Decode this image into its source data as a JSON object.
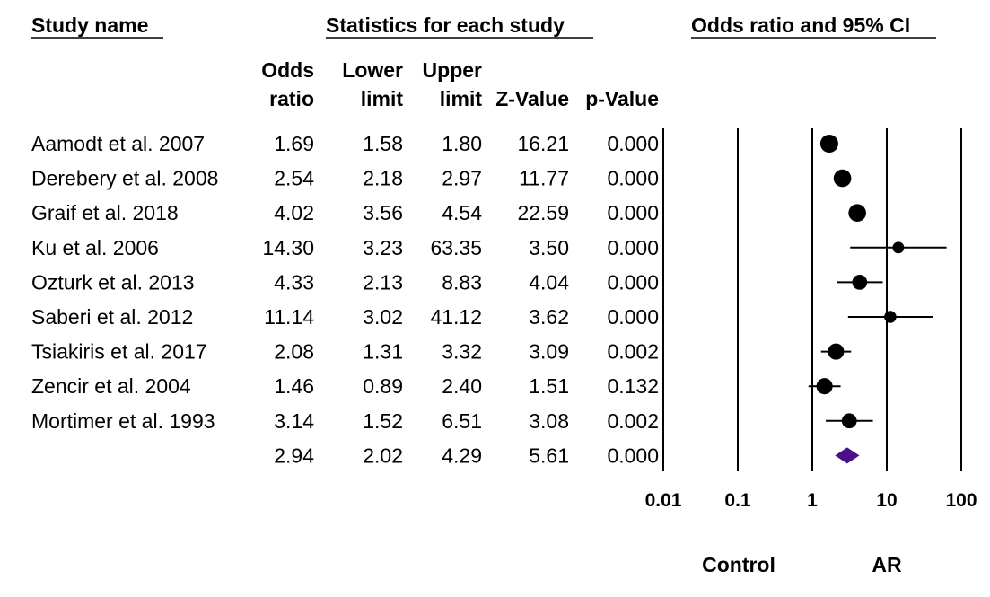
{
  "chart_data": {
    "type": "forest",
    "headers": {
      "study": "Study name",
      "statistics": "Statistics for each study",
      "plot": "Odds ratio and 95% CI"
    },
    "columns": [
      {
        "key": "or",
        "label": [
          "Odds",
          "ratio"
        ]
      },
      {
        "key": "lower",
        "label": [
          "Lower",
          "limit"
        ]
      },
      {
        "key": "upper",
        "label": [
          "Upper",
          "limit"
        ]
      },
      {
        "key": "z",
        "label": [
          "",
          "Z-Value"
        ]
      },
      {
        "key": "p",
        "label": [
          "",
          "p-Value"
        ]
      }
    ],
    "rows": [
      {
        "name": "Aamodt et al. 2007",
        "or": "1.69",
        "lower": "1.58",
        "upper": "1.80",
        "z": "16.21",
        "p": "0.000",
        "or_v": 1.69,
        "lower_v": 1.58,
        "upper_v": 1.8,
        "weight": 1.0
      },
      {
        "name": "Derebery et al. 2008",
        "or": "2.54",
        "lower": "2.18",
        "upper": "2.97",
        "z": "11.77",
        "p": "0.000",
        "or_v": 2.54,
        "lower_v": 2.18,
        "upper_v": 2.97,
        "weight": 0.97
      },
      {
        "name": "Graif et al. 2018",
        "or": "4.02",
        "lower": "3.56",
        "upper": "4.54",
        "z": "22.59",
        "p": "0.000",
        "or_v": 4.02,
        "lower_v": 3.56,
        "upper_v": 4.54,
        "weight": 0.97
      },
      {
        "name": "Ku et al. 2006",
        "or": "14.30",
        "lower": "3.23",
        "upper": "63.35",
        "z": "3.50",
        "p": "0.000",
        "or_v": 14.3,
        "lower_v": 3.23,
        "upper_v": 63.35,
        "weight": 0.45
      },
      {
        "name": "Ozturk et al. 2013",
        "or": "4.33",
        "lower": "2.13",
        "upper": "8.83",
        "z": "4.04",
        "p": "0.000",
        "or_v": 4.33,
        "lower_v": 2.13,
        "upper_v": 8.83,
        "weight": 0.75
      },
      {
        "name": "Saberi et al. 2012",
        "or": "11.14",
        "lower": "3.02",
        "upper": "41.12",
        "z": "3.62",
        "p": "0.000",
        "or_v": 11.14,
        "lower_v": 3.02,
        "upper_v": 41.12,
        "weight": 0.5
      },
      {
        "name": "Tsiakiris et al. 2017",
        "or": "2.08",
        "lower": "1.31",
        "upper": "3.32",
        "z": "3.09",
        "p": "0.002",
        "or_v": 2.08,
        "lower_v": 1.31,
        "upper_v": 3.32,
        "weight": 0.85
      },
      {
        "name": "Zencir et al. 2004",
        "or": "1.46",
        "lower": "0.89",
        "upper": "2.40",
        "z": "1.51",
        "p": "0.132",
        "or_v": 1.46,
        "lower_v": 0.89,
        "upper_v": 2.4,
        "weight": 0.85
      },
      {
        "name": "Mortimer et al. 1993",
        "or": "3.14",
        "lower": "1.52",
        "upper": "6.51",
        "z": "3.08",
        "p": "0.002",
        "or_v": 3.14,
        "lower_v": 1.52,
        "upper_v": 6.51,
        "weight": 0.75
      }
    ],
    "summary": {
      "name": "",
      "or": "2.94",
      "lower": "2.02",
      "upper": "4.29",
      "z": "5.61",
      "p": "0.000",
      "or_v": 2.94,
      "lower_v": 2.02,
      "upper_v": 4.29
    },
    "x_scale": "log",
    "xlim": [
      0.01,
      100
    ],
    "x_ticks": [
      {
        "value": 0.01,
        "label": "0.01"
      },
      {
        "value": 0.1,
        "label": "0.1"
      },
      {
        "value": 1,
        "label": "1"
      },
      {
        "value": 10,
        "label": "10"
      },
      {
        "value": 100,
        "label": "100"
      }
    ],
    "favours_left": "Control",
    "favours_right": "AR",
    "colors": {
      "marker": "#000000",
      "summary": "#4b0f8c",
      "line": "#000000"
    }
  }
}
